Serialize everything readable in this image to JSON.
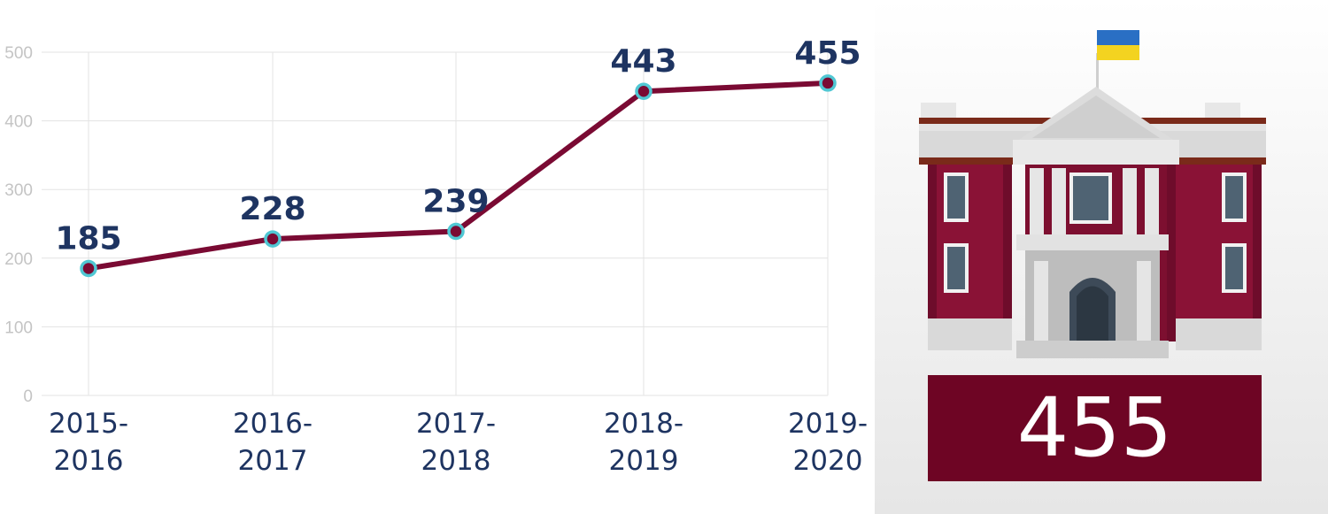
{
  "chart_data": {
    "type": "line",
    "categories": [
      "2015-2016",
      "2016-2017",
      "2017-2018",
      "2018-2019",
      "2019-2020"
    ],
    "category_lines": [
      [
        "2015-",
        "2016"
      ],
      [
        "2016-",
        "2017"
      ],
      [
        "2017-",
        "2018"
      ],
      [
        "2018-",
        "2019"
      ],
      [
        "2019-",
        "2020"
      ]
    ],
    "values": [
      185,
      228,
      239,
      443,
      455
    ],
    "data_labels": [
      "185",
      "228",
      "239",
      "443",
      "455"
    ],
    "yticks": [
      0,
      100,
      200,
      300,
      400,
      500
    ],
    "ylim": [
      0,
      500
    ],
    "grid": true,
    "colors": {
      "line": "#7a0a33",
      "marker_fill": "#7a0a33",
      "marker_ring": "#50c7d3",
      "labels": "#1e3461"
    }
  },
  "summary": {
    "total": "455",
    "box_color": "#6e0524"
  },
  "illustration": {
    "icon": "university-building-icon",
    "flag": "ukraine-flag-icon"
  }
}
